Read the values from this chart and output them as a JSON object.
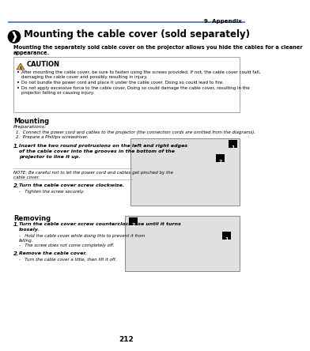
{
  "page_num": "212",
  "chapter": "9. Appendix",
  "section_symbol": "❱",
  "section_title": " Mounting the cable cover (sold separately)",
  "intro_line1": "Mounting the separately sold cable cover on the projector allows you hide the cables for a cleaner",
  "intro_line2": "appearance.",
  "caution_title": "CAUTION",
  "caution_bullets": [
    "After mounting the cable cover, be sure to fasten using the screws provided. If not, the cable cover could fall,",
    "damaging the cable cover and possibly resulting in injury.",
    "Do not bundle the power cord and place it under the cable cover. Doing so could lead to fire.",
    "Do not apply excessive force to the cable cover. Doing so could damage the cable cover, resulting in the",
    "projector falling or causing injury."
  ],
  "mounting_title": "Mounting",
  "prep_label": "Preparations:",
  "prep1": "1.  Connect the power cord and cables to the projector (the connection cords are omitted from the diagrams).",
  "prep2": "2.  Prepare a Phillips screwdriver.",
  "step1_num": "1.",
  "step1_line1": "Insert the two round protrusions on the left and right edges",
  "step1_line2": "of the cable cover into the grooves in the bottom of the",
  "step1_line3": "projector to line it up.",
  "note_line1": "NOTE: Be careful not to let the power cord and cables get pinched by the",
  "note_line2": "cable cover.",
  "step2_num": "2.",
  "step2_text": "Turn the cable cover screw clockwise.",
  "step2_sub": "-   Tighten the screw securely.",
  "removing_title": "Removing",
  "r1_num": "1.",
  "r1_line1": "Turn the cable cover screw counterclockwise until it turns",
  "r1_line2": "loosely.",
  "r1_sub1": "-   Hold the cable cover while doing this to prevent it from",
  "r1_sub1b": "falling.",
  "r1_sub2": "-   The screw does not come completely off.",
  "r2_num": "2.",
  "r2_text": "Remove the cable cover.",
  "r2_sub": "-   Turn the cable cover a little, then lift it off.",
  "bg_color": "#ffffff",
  "header_line_color": "#3c6eb4",
  "caution_border_color": "#aaaaaa",
  "caution_icon_color": "#f5a623",
  "text_color": "#000000",
  "gray_line_color": "#aaaaaa",
  "diagram_bg": "#e0e0e0",
  "diagram_border": "#888888"
}
